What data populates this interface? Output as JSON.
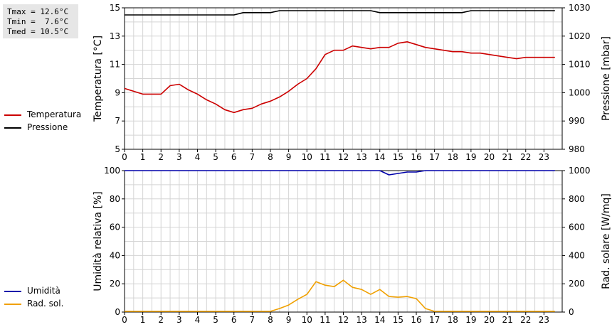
{
  "stats": {
    "tmax": "Tmax = 12.6°C",
    "tmin": "Tmin =  7.6°C",
    "tmed": "Tmed = 10.5°C"
  },
  "legend_top": [
    {
      "label": "Temperatura",
      "color": "#cc0000"
    },
    {
      "label": "Pressione",
      "color": "#000000"
    }
  ],
  "legend_bottom": [
    {
      "label": "Umidità",
      "color": "#0000aa"
    },
    {
      "label": "Rad. sol.",
      "color": "#f0a000"
    }
  ],
  "chart_data": [
    {
      "type": "line",
      "xlim": [
        0,
        24
      ],
      "xticks": [
        "0",
        "1",
        "2",
        "3",
        "4",
        "5",
        "6",
        "7",
        "8",
        "9",
        "10",
        "11",
        "12",
        "13",
        "14",
        "15",
        "16",
        "17",
        "18",
        "19",
        "20",
        "21",
        "22",
        "23"
      ],
      "grid": true,
      "left_axis": {
        "label": "Temperatura [°C]",
        "ylim": [
          5,
          15
        ],
        "ticks": [
          "5",
          "7",
          "9",
          "11",
          "13",
          "15"
        ]
      },
      "right_axis": {
        "label": "Pressione [mbar]",
        "ylim": [
          980,
          1030
        ],
        "ticks": [
          "980",
          "990",
          "1000",
          "1010",
          "1020",
          "1030"
        ]
      },
      "series": [
        {
          "name": "Temperatura",
          "axis": "left",
          "color": "#cc0000",
          "x": [
            0,
            0.5,
            1,
            1.5,
            2,
            2.5,
            3,
            3.5,
            4,
            4.5,
            5,
            5.5,
            6,
            6.5,
            7,
            7.5,
            8,
            8.5,
            9,
            9.5,
            10,
            10.5,
            11,
            11.5,
            12,
            12.5,
            13,
            13.5,
            14,
            14.5,
            15,
            15.5,
            16,
            16.5,
            17,
            17.5,
            18,
            18.5,
            19,
            19.5,
            20,
            20.5,
            21,
            21.5,
            22,
            22.5,
            23,
            23.6
          ],
          "y": [
            9.3,
            9.1,
            8.9,
            8.9,
            8.9,
            9.5,
            9.6,
            9.2,
            8.9,
            8.5,
            8.2,
            7.8,
            7.6,
            7.8,
            7.9,
            8.2,
            8.4,
            8.7,
            9.1,
            9.6,
            10.0,
            10.7,
            11.7,
            12.0,
            12.0,
            12.3,
            12.2,
            12.1,
            12.2,
            12.2,
            12.5,
            12.6,
            12.4,
            12.2,
            12.1,
            12.0,
            11.9,
            11.9,
            11.8,
            11.8,
            11.7,
            11.6,
            11.5,
            11.4,
            11.5,
            11.5,
            11.5,
            11.5
          ]
        },
        {
          "name": "Pressione",
          "axis": "right",
          "color": "#000000",
          "x": [
            0,
            6.0,
            6.5,
            8.0,
            8.5,
            13.5,
            14.0,
            18.5,
            19.0,
            23.6
          ],
          "y": [
            1027.5,
            1027.5,
            1028.3,
            1028.3,
            1029.0,
            1029.0,
            1028.3,
            1028.3,
            1029.0,
            1029.0
          ]
        }
      ]
    },
    {
      "type": "line",
      "xlim": [
        0,
        24
      ],
      "xticks": [
        "0",
        "1",
        "2",
        "3",
        "4",
        "5",
        "6",
        "7",
        "8",
        "9",
        "10",
        "11",
        "12",
        "13",
        "14",
        "15",
        "16",
        "17",
        "18",
        "19",
        "20",
        "21",
        "22",
        "23"
      ],
      "grid": true,
      "left_axis": {
        "label": "Umidità relativa [%]",
        "ylim": [
          0,
          100
        ],
        "ticks": [
          "0",
          "20",
          "40",
          "60",
          "80",
          "100"
        ]
      },
      "right_axis": {
        "label": "Rad. solare [W/mq]",
        "ylim": [
          0,
          1000
        ],
        "ticks": [
          "0",
          "200",
          "400",
          "600",
          "800",
          "1000"
        ]
      },
      "series": [
        {
          "name": "Umidità",
          "axis": "left",
          "color": "#0000aa",
          "x": [
            0,
            14.0,
            14.5,
            15.0,
            15.5,
            16.0,
            16.5,
            23.6
          ],
          "y": [
            100,
            100,
            97,
            98,
            99,
            99,
            100,
            100
          ]
        },
        {
          "name": "Rad. sol.",
          "axis": "right",
          "color": "#f0a000",
          "x": [
            0,
            8.0,
            8.5,
            9.0,
            9.5,
            10.0,
            10.5,
            11.0,
            11.5,
            12.0,
            12.5,
            13.0,
            13.5,
            14.0,
            14.5,
            15.0,
            15.5,
            16.0,
            16.5,
            17.0,
            23.6
          ],
          "y": [
            5,
            5,
            25,
            50,
            90,
            125,
            215,
            190,
            180,
            225,
            175,
            160,
            125,
            160,
            110,
            105,
            110,
            95,
            25,
            5,
            5
          ]
        }
      ]
    }
  ]
}
